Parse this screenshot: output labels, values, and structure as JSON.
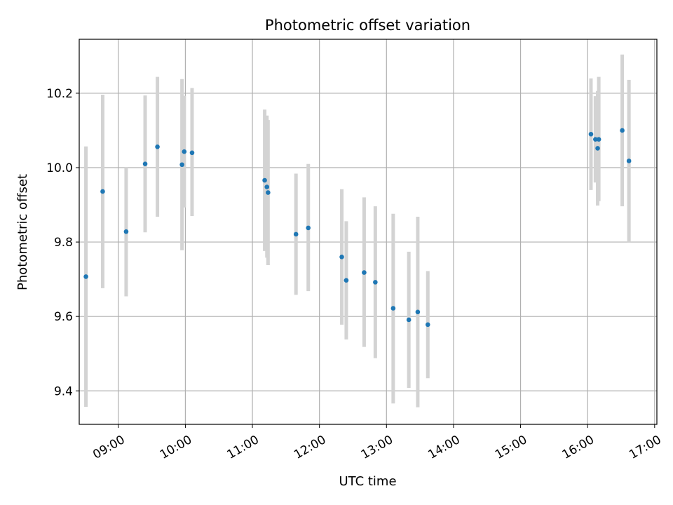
{
  "chart_data": {
    "type": "scatter",
    "title": "Photometric offset variation",
    "xlabel": "UTC time",
    "ylabel": "Photometric offset",
    "grid": true,
    "xlim": [
      "08:25",
      "17:02"
    ],
    "ylim": [
      9.31,
      10.345
    ],
    "x_ticks": [
      "09:00",
      "10:00",
      "11:00",
      "12:00",
      "13:00",
      "14:00",
      "15:00",
      "16:00",
      "17:00"
    ],
    "y_ticks": [
      9.4,
      9.6,
      9.8,
      10.0,
      10.2
    ],
    "y_tick_labels": [
      "9.4",
      "9.6",
      "9.8",
      "10.0",
      "10.2"
    ],
    "point_color": "#1f77b4",
    "errorbar_color": "#d3d3d3",
    "points": [
      {
        "x": "08:31",
        "y": 9.707,
        "ymin": 9.357,
        "ymax": 10.057
      },
      {
        "x": "08:46",
        "y": 9.936,
        "ymin": 9.676,
        "ymax": 10.196
      },
      {
        "x": "09:07",
        "y": 9.828,
        "ymin": 9.654,
        "ymax": 10.002
      },
      {
        "x": "09:24",
        "y": 10.01,
        "ymin": 9.826,
        "ymax": 10.194
      },
      {
        "x": "09:35",
        "y": 10.056,
        "ymin": 9.868,
        "ymax": 10.244
      },
      {
        "x": "09:57",
        "y": 10.008,
        "ymin": 9.778,
        "ymax": 10.238
      },
      {
        "x": "09:59",
        "y": 10.043,
        "ymin": 9.893,
        "ymax": 10.193
      },
      {
        "x": "10:06",
        "y": 10.04,
        "ymin": 9.87,
        "ymax": 10.214
      },
      {
        "x": "11:11",
        "y": 9.966,
        "ymin": 9.776,
        "ymax": 10.156
      },
      {
        "x": "11:13",
        "y": 9.948,
        "ymin": 9.758,
        "ymax": 10.14
      },
      {
        "x": "11:14",
        "y": 9.933,
        "ymin": 9.738,
        "ymax": 10.128
      },
      {
        "x": "11:39",
        "y": 9.821,
        "ymin": 9.658,
        "ymax": 9.984
      },
      {
        "x": "11:50",
        "y": 9.838,
        "ymin": 9.668,
        "ymax": 10.01
      },
      {
        "x": "12:20",
        "y": 9.76,
        "ymin": 9.578,
        "ymax": 9.942
      },
      {
        "x": "12:24",
        "y": 9.697,
        "ymin": 9.538,
        "ymax": 9.856
      },
      {
        "x": "12:40",
        "y": 9.718,
        "ymin": 9.518,
        "ymax": 9.92
      },
      {
        "x": "12:50",
        "y": 9.692,
        "ymin": 9.488,
        "ymax": 9.896
      },
      {
        "x": "13:06",
        "y": 9.622,
        "ymin": 9.366,
        "ymax": 9.876
      },
      {
        "x": "13:20",
        "y": 9.591,
        "ymin": 9.408,
        "ymax": 9.774
      },
      {
        "x": "13:28",
        "y": 9.612,
        "ymin": 9.356,
        "ymax": 9.868
      },
      {
        "x": "13:37",
        "y": 9.578,
        "ymin": 9.434,
        "ymax": 9.722
      },
      {
        "x": "16:03",
        "y": 10.09,
        "ymin": 9.94,
        "ymax": 10.24
      },
      {
        "x": "16:07",
        "y": 10.076,
        "ymin": 9.96,
        "ymax": 10.192
      },
      {
        "x": "16:09",
        "y": 10.052,
        "ymin": 9.898,
        "ymax": 10.206
      },
      {
        "x": "16:10",
        "y": 10.076,
        "ymin": 9.91,
        "ymax": 10.244
      },
      {
        "x": "16:31",
        "y": 10.1,
        "ymin": 9.896,
        "ymax": 10.304
      },
      {
        "x": "16:37",
        "y": 10.018,
        "ymin": 9.8,
        "ymax": 10.236
      }
    ]
  }
}
